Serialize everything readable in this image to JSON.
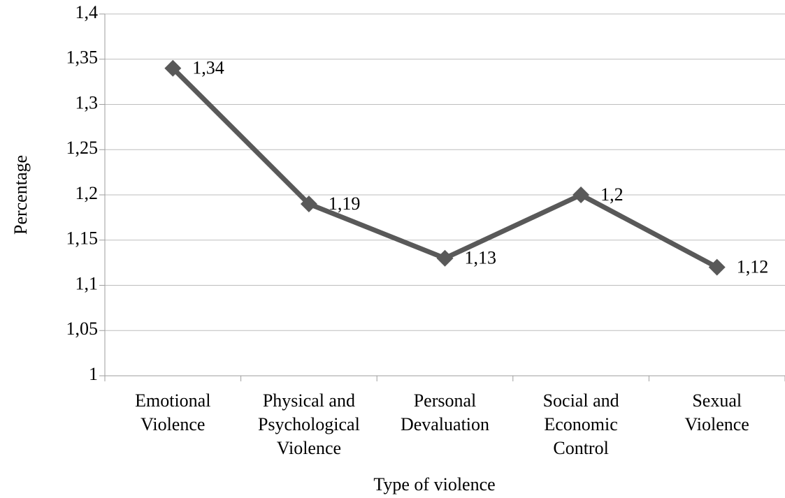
{
  "chart_data": {
    "type": "line",
    "title": "",
    "xlabel": "Type of violence",
    "ylabel": "Percentage",
    "categories": [
      [
        "Emotional",
        "Violence"
      ],
      [
        "Physical and",
        "Psychological",
        "Violence"
      ],
      [
        "Personal",
        "Devaluation"
      ],
      [
        "Social and",
        "Economic",
        "Control"
      ],
      [
        "Sexual",
        "Violence"
      ]
    ],
    "series": [
      {
        "values": [
          1.34,
          1.19,
          1.13,
          1.2,
          1.12
        ],
        "data_labels": [
          "1,34",
          "1,19",
          "1,13",
          "1,2",
          "1,12"
        ],
        "color": "#595959",
        "marker": "diamond"
      }
    ],
    "ylim": [
      1,
      1.4
    ],
    "yticks": [
      1,
      1.05,
      1.1,
      1.15,
      1.2,
      1.25,
      1.3,
      1.35,
      1.4
    ],
    "ytick_labels": [
      "1",
      "1,05",
      "1,1",
      "1,15",
      "1,2",
      "1,25",
      "1,3",
      "1,35",
      "1,4"
    ],
    "grid": true,
    "legend": "none"
  }
}
